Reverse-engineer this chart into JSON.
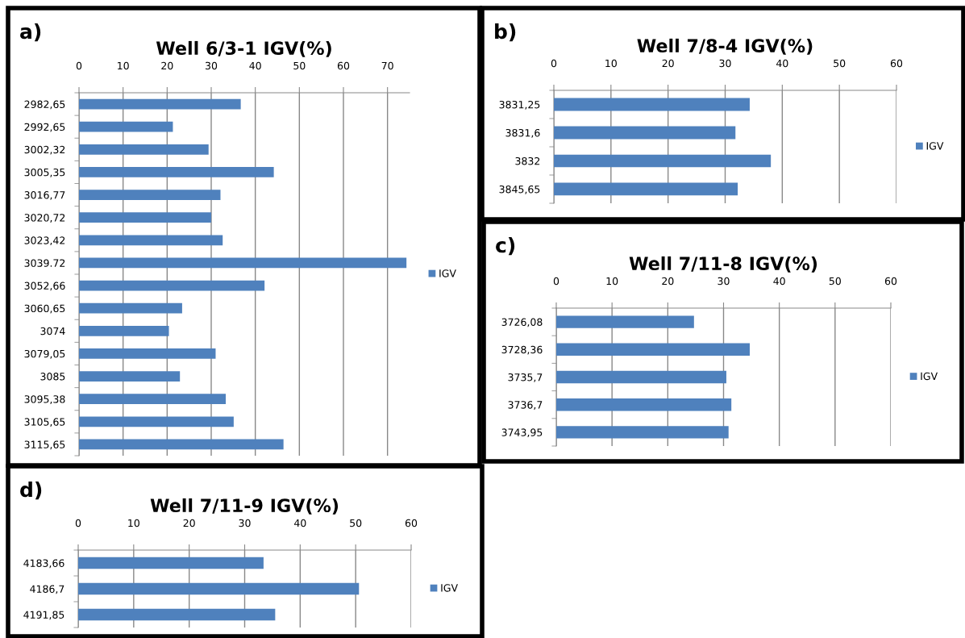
{
  "chart_data": [
    {
      "type": "bar",
      "orientation": "horizontal",
      "title": "Well 6/3-1 IGV(%)",
      "annotations": [
        "a)"
      ],
      "categories": [
        "2982,65",
        "2992,65",
        "3002,32",
        "3005,35",
        "3016,77",
        "3020,72",
        "3023,42",
        "3039.72",
        "3052,66",
        "3060,65",
        "3074",
        "3079,05",
        "3085",
        "3095,38",
        "3105,65",
        "3115,65"
      ],
      "series": [
        {
          "name": "IGV",
          "color": "#4f81bd",
          "values": [
            36.7,
            21.3,
            29.4,
            44.2,
            32.1,
            30.0,
            32.6,
            74.3,
            42.1,
            23.4,
            20.4,
            31.0,
            22.9,
            33.3,
            35.1,
            46.4
          ]
        }
      ],
      "xlim": [
        0,
        75
      ],
      "xticks": [
        0,
        10,
        20,
        30,
        40,
        50,
        60,
        70
      ],
      "grid": "x",
      "legend": "right"
    },
    {
      "type": "bar",
      "orientation": "horizontal",
      "title": "Well 7/8-4 IGV(%)",
      "annotations": [
        "b)"
      ],
      "categories": [
        "3831,25",
        "3831,6",
        "3832",
        "3845,65"
      ],
      "series": [
        {
          "name": "IGV",
          "color": "#4f81bd",
          "values": [
            34.3,
            31.8,
            38.0,
            32.2
          ]
        }
      ],
      "xlim": [
        0,
        60
      ],
      "xticks": [
        0,
        10,
        20,
        30,
        40,
        50,
        60
      ],
      "grid": "x",
      "legend": "right"
    },
    {
      "type": "bar",
      "orientation": "horizontal",
      "title": "Well 7/11-8 IGV(%)",
      "annotations": [
        "c)"
      ],
      "categories": [
        "3726,08",
        "3728,36",
        "3735,7",
        "3736,7",
        "3743,95"
      ],
      "series": [
        {
          "name": "IGV",
          "color": "#4f81bd",
          "values": [
            24.7,
            34.7,
            30.5,
            31.4,
            30.9
          ]
        }
      ],
      "xlim": [
        0,
        60
      ],
      "xticks": [
        0,
        10,
        20,
        30,
        40,
        50,
        60
      ],
      "grid": "x",
      "legend": "right"
    },
    {
      "type": "bar",
      "orientation": "horizontal",
      "title": "Well 7/11-9 IGV(%)",
      "annotations": [
        "d)"
      ],
      "categories": [
        "4183,66",
        "4186,7",
        "4191,85"
      ],
      "series": [
        {
          "name": "IGV",
          "color": "#4f81bd",
          "values": [
            33.4,
            50.6,
            35.5
          ]
        }
      ],
      "xlim": [
        0,
        60
      ],
      "xticks": [
        0,
        10,
        20,
        30,
        40,
        50,
        60
      ],
      "grid": "x",
      "legend": "right"
    }
  ]
}
